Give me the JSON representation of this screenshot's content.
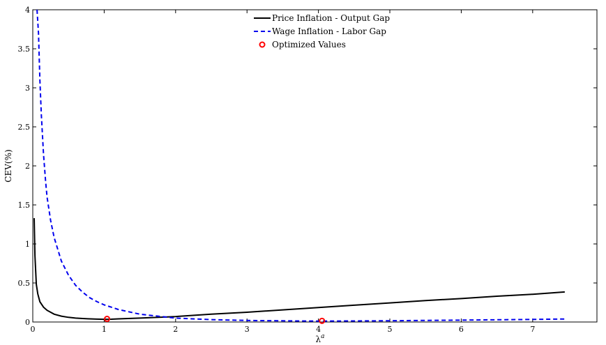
{
  "chart_data": {
    "type": "line",
    "title": "",
    "xlabel": "λ",
    "xlabel_superscript": "a",
    "ylabel": "CEV(%)",
    "xlim": [
      0,
      7.9
    ],
    "ylim": [
      0,
      4
    ],
    "xticks": [
      0,
      1,
      2,
      3,
      4,
      5,
      6,
      7
    ],
    "yticks": [
      0,
      0.5,
      1,
      1.5,
      2,
      2.5,
      3,
      3.5,
      4
    ],
    "ytick_labels": [
      "0",
      "0.5",
      "1",
      "1.5",
      "2",
      "2.5",
      "3",
      "3.5",
      "4"
    ],
    "grid": false,
    "legend_position": "top-center",
    "series": [
      {
        "name": "Price Inflation - Output Gap",
        "style": "solid",
        "color": "#000000",
        "x": [
          0.02,
          0.03,
          0.05,
          0.07,
          0.1,
          0.15,
          0.2,
          0.3,
          0.4,
          0.5,
          0.6,
          0.7,
          0.8,
          0.9,
          1.0,
          1.1,
          1.2,
          1.5,
          2.0,
          2.5,
          3.0,
          3.5,
          4.0,
          4.5,
          5.0,
          5.5,
          6.0,
          6.5,
          7.0,
          7.45
        ],
        "y": [
          1.33,
          0.85,
          0.48,
          0.36,
          0.26,
          0.19,
          0.15,
          0.1,
          0.075,
          0.06,
          0.05,
          0.045,
          0.04,
          0.037,
          0.035,
          0.036,
          0.04,
          0.05,
          0.07,
          0.1,
          0.125,
          0.155,
          0.185,
          0.215,
          0.245,
          0.275,
          0.3,
          0.33,
          0.355,
          0.385
        ]
      },
      {
        "name": "Wage Inflation - Labor Gap",
        "style": "dashed",
        "color": "#0000ee",
        "x": [
          0.06,
          0.08,
          0.1,
          0.12,
          0.15,
          0.18,
          0.2,
          0.25,
          0.3,
          0.4,
          0.5,
          0.6,
          0.7,
          0.8,
          0.9,
          1.0,
          1.2,
          1.5,
          2.0,
          2.5,
          3.0,
          3.5,
          4.0,
          4.5,
          5.0,
          6.0,
          7.0,
          7.45
        ],
        "y": [
          4.0,
          3.7,
          3.1,
          2.65,
          2.15,
          1.8,
          1.6,
          1.3,
          1.08,
          0.78,
          0.6,
          0.47,
          0.38,
          0.31,
          0.26,
          0.22,
          0.16,
          0.1,
          0.05,
          0.03,
          0.02,
          0.015,
          0.012,
          0.013,
          0.016,
          0.024,
          0.033,
          0.038
        ]
      },
      {
        "name": "Optimized Values",
        "style": "marker",
        "color": "#ff0000",
        "x": [
          1.04,
          4.05
        ],
        "y": [
          0.04,
          0.015
        ]
      }
    ]
  }
}
